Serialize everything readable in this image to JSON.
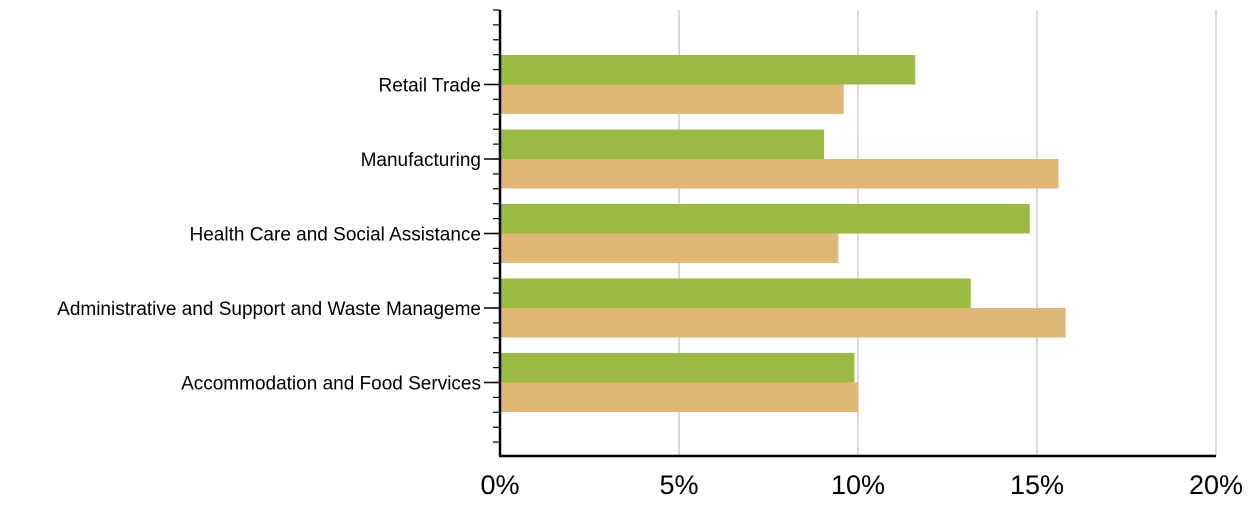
{
  "chart_data": {
    "type": "bar",
    "orientation": "horizontal",
    "categories": [
      "Retail Trade",
      "Manufacturing",
      "Health Care and Social Assistance",
      "Administrative and Support and Waste Manageme",
      "Accommodation and Food Services"
    ],
    "series": [
      {
        "values": [
          11.6,
          9.05,
          14.8,
          13.15,
          9.9
        ]
      },
      {
        "values": [
          9.6,
          15.6,
          9.45,
          15.8,
          10.0
        ]
      }
    ],
    "series_colors": [
      "#9bba44",
      "#e0b776"
    ],
    "xlim": [
      0,
      20
    ],
    "x_ticks": [
      "0%",
      "5%",
      "10%",
      "15%",
      "20%"
    ],
    "grid": "vertical",
    "legend": "none",
    "title": "",
    "xlabel": "",
    "ylabel": ""
  }
}
